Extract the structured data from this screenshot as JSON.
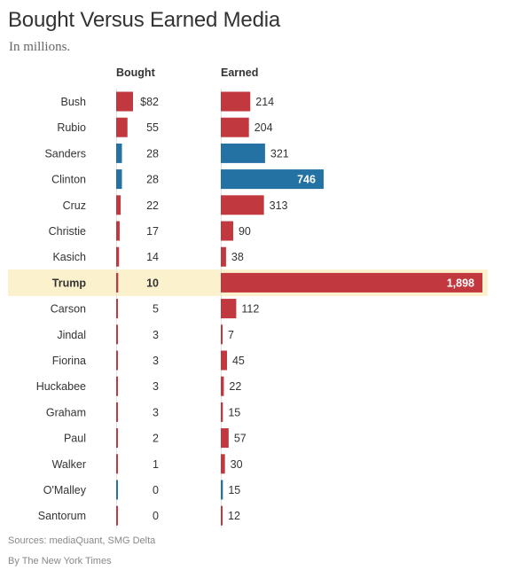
{
  "title": "Bought Versus Earned Media",
  "subtitle": "In millions.",
  "column_headers": {
    "bought": "Bought",
    "earned": "Earned"
  },
  "source": "Sources: mediaQuant, SMG Delta",
  "byline": "By The New York Times",
  "colors": {
    "republican": "#c1393f",
    "democrat": "#2471a3",
    "highlight": "#fbf1cc",
    "axis": "#e2e2e2"
  },
  "chart_data": {
    "type": "bar",
    "title": "Bought Versus Earned Media",
    "subtitle": "In millions.",
    "units": "millions of dollars",
    "highlighted_category": "Trump",
    "categories": [
      "Bush",
      "Rubio",
      "Sanders",
      "Clinton",
      "Cruz",
      "Christie",
      "Kasich",
      "Trump",
      "Carson",
      "Jindal",
      "Fiorina",
      "Huckabee",
      "Graham",
      "Paul",
      "Walker",
      "O'Malley",
      "Santorum"
    ],
    "party": [
      "R",
      "R",
      "D",
      "D",
      "R",
      "R",
      "R",
      "R",
      "R",
      "R",
      "R",
      "R",
      "R",
      "R",
      "R",
      "D",
      "R"
    ],
    "series": [
      {
        "name": "Bought",
        "values": [
          82,
          55,
          28,
          28,
          22,
          17,
          14,
          10,
          5,
          3,
          3,
          3,
          3,
          2,
          1,
          0,
          0
        ],
        "labels": [
          "$82",
          "55",
          "28",
          "28",
          "22",
          "17",
          "14",
          "10",
          "5",
          "3",
          "3",
          "3",
          "3",
          "2",
          "1",
          "0",
          "0"
        ]
      },
      {
        "name": "Earned",
        "values": [
          214,
          204,
          321,
          746,
          313,
          90,
          38,
          1898,
          112,
          7,
          45,
          22,
          15,
          57,
          30,
          15,
          12
        ],
        "labels": [
          "214",
          "204",
          "321",
          "746",
          "313",
          "90",
          "38",
          "1,898",
          "112",
          "7",
          "45",
          "22",
          "15",
          "57",
          "30",
          "15",
          "12"
        ]
      }
    ]
  }
}
